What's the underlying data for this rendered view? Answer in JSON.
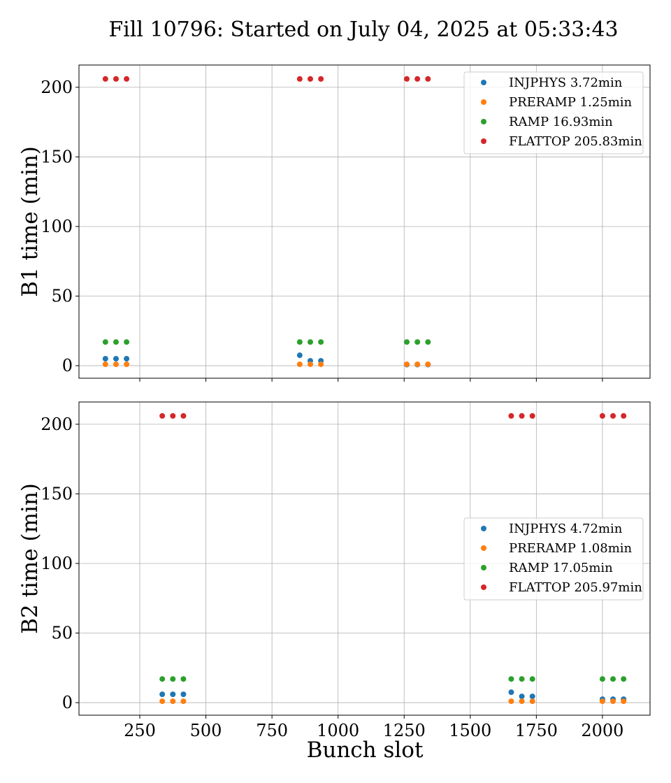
{
  "chart_data": {
    "type": "scatter",
    "title": "Fill 10796: Started on July 04, 2025 at 05:33:43",
    "xlabel": "Bunch slot",
    "x_ticks": [
      250,
      500,
      750,
      1000,
      1250,
      1500,
      1750,
      2000
    ],
    "xlim": [
      20,
      2180
    ],
    "y_ticks": [
      0,
      50,
      100,
      150,
      200
    ],
    "grid": true,
    "panels": [
      {
        "ylabel": "B1 time (min)",
        "ylim": [
          -9,
          216
        ],
        "legend_position": "top-right",
        "series": [
          {
            "name": "INJPHYS 3.72min",
            "color": "#1f77b4",
            "x": [
              120,
              160,
              200,
              855,
              895,
              935,
              1260,
              1300,
              1340
            ],
            "y": [
              5,
              5,
              5,
              7.5,
              3.5,
              3.5,
              0.8,
              0.8,
              0.8
            ]
          },
          {
            "name": "PRERAMP 1.25min",
            "color": "#ff7f0e",
            "x": [
              120,
              160,
              200,
              855,
              895,
              935,
              1260,
              1300,
              1340
            ],
            "y": [
              1,
              1,
              1,
              1,
              1,
              1,
              1,
              1,
              1
            ]
          },
          {
            "name": "RAMP 16.93min",
            "color": "#2ca02c",
            "x": [
              120,
              160,
              200,
              855,
              895,
              935,
              1260,
              1300,
              1340
            ],
            "y": [
              17,
              17,
              17,
              17,
              17,
              17,
              17,
              17,
              17
            ]
          },
          {
            "name": "FLATTOP 205.83min",
            "color": "#d62728",
            "x": [
              120,
              160,
              200,
              855,
              895,
              935,
              1260,
              1300,
              1340
            ],
            "y": [
              206,
              206,
              206,
              206,
              206,
              206,
              206,
              206,
              206
            ]
          }
        ]
      },
      {
        "ylabel": "B2 time (min)",
        "ylim": [
          -9,
          216
        ],
        "legend_position": "center-right",
        "series": [
          {
            "name": "INJPHYS 4.72min",
            "color": "#1f77b4",
            "x": [
              335,
              375,
              415,
              1655,
              1695,
              1735,
              2000,
              2040,
              2080
            ],
            "y": [
              6,
              6,
              6,
              7.5,
              4.5,
              4.5,
              2.5,
              2.5,
              2.5
            ]
          },
          {
            "name": "PRERAMP 1.08min",
            "color": "#ff7f0e",
            "x": [
              335,
              375,
              415,
              1655,
              1695,
              1735,
              2000,
              2040,
              2080
            ],
            "y": [
              1,
              1,
              1,
              1,
              1,
              1,
              1,
              1,
              1
            ]
          },
          {
            "name": "RAMP 17.05min",
            "color": "#2ca02c",
            "x": [
              335,
              375,
              415,
              1655,
              1695,
              1735,
              2000,
              2040,
              2080
            ],
            "y": [
              17,
              17,
              17,
              17,
              17,
              17,
              17,
              17,
              17
            ]
          },
          {
            "name": "FLATTOP 205.97min",
            "color": "#d62728",
            "x": [
              335,
              375,
              415,
              1655,
              1695,
              1735,
              2000,
              2040,
              2080
            ],
            "y": [
              206,
              206,
              206,
              206,
              206,
              206,
              206,
              206,
              206
            ]
          }
        ]
      }
    ]
  }
}
